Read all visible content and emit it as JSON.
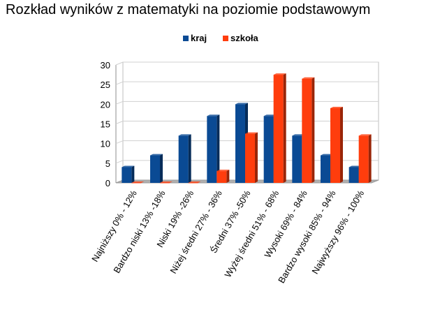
{
  "chart_data": {
    "type": "bar",
    "title": "Rozkład wyników z matematyki na poziomie podstawowym",
    "categories": [
      "Najniższy 0% - 12%",
      "Bardzo niski 13% -18%",
      "Niski 19% -26%",
      "Niżej średni 27% - 36%",
      "Średni 37% -50%",
      "Wyżej średni 51% - 68%",
      "Wysoki 69% - 84%",
      "Bardzo wysoki 85% - 94%",
      "Najwyższy 96% - 100%"
    ],
    "series": [
      {
        "name": "kraj",
        "color": "#0a4a94",
        "values": [
          4,
          7,
          12,
          17,
          20,
          17,
          12,
          7,
          4
        ]
      },
      {
        "name": "szkoła",
        "color": "#ff3d0d",
        "values": [
          0,
          0,
          0,
          3,
          12.5,
          27.5,
          26.5,
          19,
          12
        ]
      }
    ],
    "ylim": [
      0,
      30
    ],
    "yticks": [
      "0",
      "5",
      "10",
      "15",
      "20",
      "25",
      "30"
    ],
    "grid": true,
    "legend_position": "top",
    "xlabel": "",
    "ylabel": ""
  }
}
